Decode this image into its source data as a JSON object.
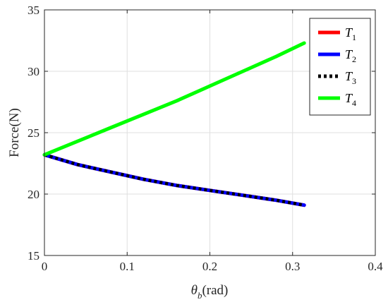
{
  "chart_data": {
    "type": "line",
    "xlabel": "θb(rad)",
    "xlabel_main": "θ",
    "xlabel_sub": "b",
    "xlabel_unit": "(rad)",
    "ylabel": "Force(N)",
    "xlim": [
      0,
      0.4
    ],
    "ylim": [
      15,
      35
    ],
    "x_ticks": [
      0,
      0.1,
      0.2,
      0.3,
      0.4
    ],
    "x_tick_labels": [
      "0",
      "0.1",
      "0.2",
      "0.3",
      "0.4"
    ],
    "y_ticks": [
      15,
      20,
      25,
      30,
      35
    ],
    "y_tick_labels": [
      "15",
      "20",
      "25",
      "30",
      "35"
    ],
    "grid": true,
    "legend_position": "top-right",
    "x": [
      0,
      0.04,
      0.08,
      0.12,
      0.16,
      0.2,
      0.24,
      0.28,
      0.314
    ],
    "series": [
      {
        "name": "T1",
        "name_main": "T",
        "name_sub": "1",
        "color": "#ff0000",
        "style": "solid",
        "values": [
          23.2,
          22.4,
          21.8,
          21.2,
          20.7,
          20.3,
          19.9,
          19.5,
          19.1
        ]
      },
      {
        "name": "T2",
        "name_main": "T",
        "name_sub": "2",
        "color": "#0000ff",
        "style": "solid",
        "values": [
          23.2,
          22.4,
          21.8,
          21.2,
          20.7,
          20.3,
          19.9,
          19.5,
          19.1
        ]
      },
      {
        "name": "T3",
        "name_main": "T",
        "name_sub": "3",
        "color": "#000000",
        "style": "dotted",
        "values": [
          23.2,
          22.4,
          21.8,
          21.2,
          20.7,
          20.3,
          19.9,
          19.5,
          19.1
        ]
      },
      {
        "name": "T4",
        "name_main": "T",
        "name_sub": "4",
        "color": "#00ff00",
        "style": "solid",
        "values": [
          23.2,
          24.3,
          25.4,
          26.5,
          27.6,
          28.8,
          30.0,
          31.2,
          32.3
        ]
      }
    ]
  }
}
